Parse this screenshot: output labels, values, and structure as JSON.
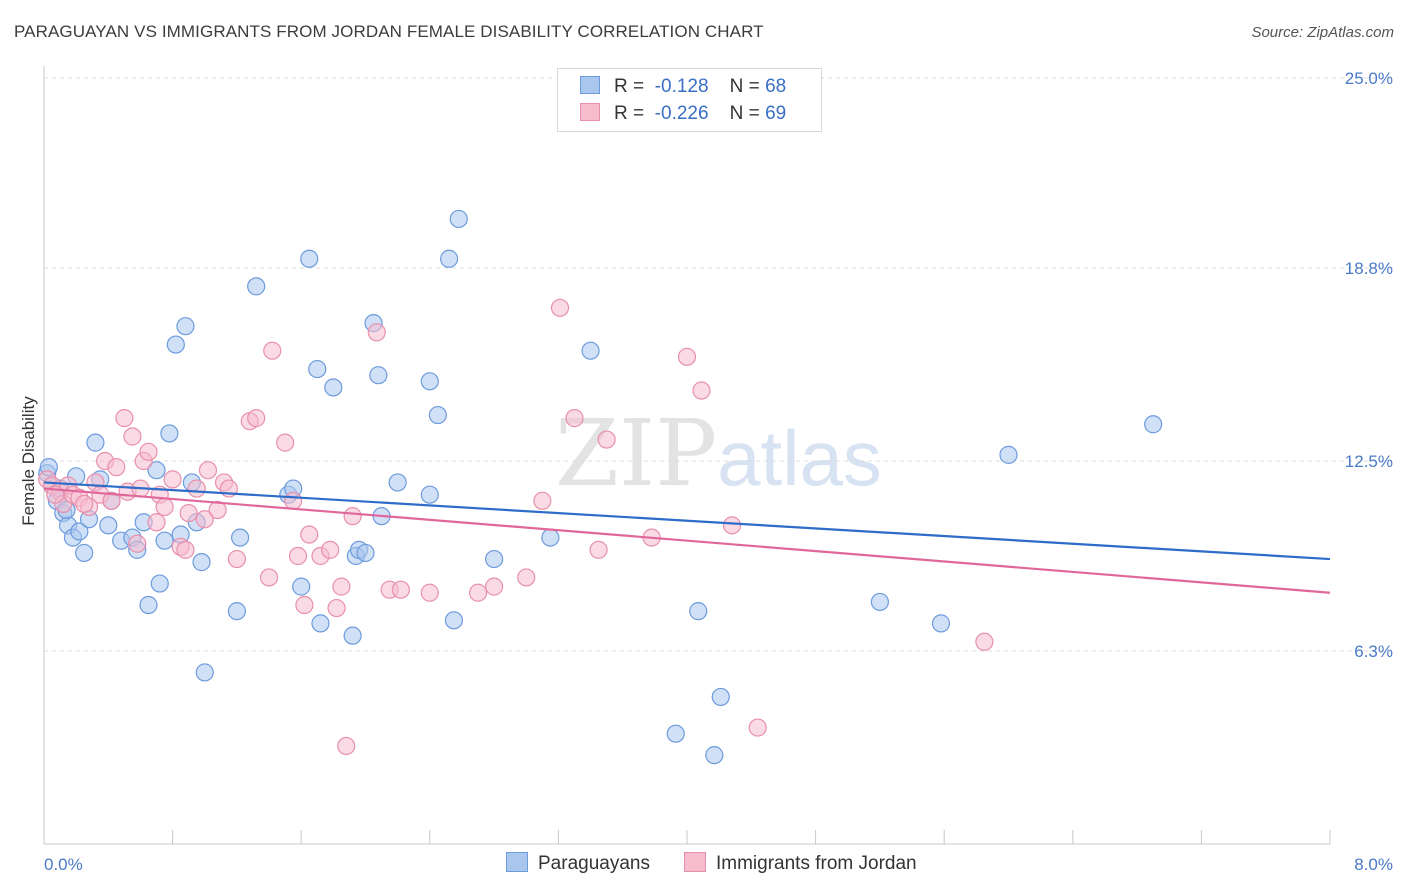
{
  "title": "PARAGUAYAN VS IMMIGRANTS FROM JORDAN FEMALE DISABILITY CORRELATION CHART",
  "source": "Source: ZipAtlas.com",
  "watermark": {
    "zip": "ZIP",
    "atlas": "atlas"
  },
  "legend": {
    "r_label": "R =",
    "n_label": "N =",
    "rows": [
      {
        "r": "-0.128",
        "n": "68"
      },
      {
        "r": "-0.226",
        "n": "69"
      }
    ]
  },
  "bottom_legend": [
    "Paraguayans",
    "Immigrants from Jordan"
  ],
  "colors": {
    "blue_fill": "#a9c6ef",
    "blue_stroke": "#6d9bdc",
    "blue_line": "#2d6cc8",
    "pink_fill": "#f6bccd",
    "pink_stroke": "#e890ab",
    "pink_line": "#e0679a"
  },
  "chart_data": {
    "type": "scatter",
    "title": "PARAGUAYAN VS IMMIGRANTS FROM JORDAN FEMALE DISABILITY CORRELATION CHART",
    "xlabel": "",
    "ylabel": "Female Disability",
    "xlim": [
      0,
      8.0
    ],
    "ylim": [
      0,
      25.0
    ],
    "x_tick_labels": [
      "0.0%",
      "8.0%"
    ],
    "y_ticks": [
      6.3,
      12.5,
      18.8,
      25.0
    ],
    "y_tick_labels": [
      "6.3%",
      "12.5%",
      "18.8%",
      "25.0%"
    ],
    "grid": true,
    "series": [
      {
        "name": "Paraguayans",
        "trend": [
          [
            0,
            11.8
          ],
          [
            8.0,
            9.3
          ]
        ],
        "points": [
          [
            0.02,
            12.1
          ],
          [
            0.05,
            11.7
          ],
          [
            0.08,
            11.2
          ],
          [
            0.12,
            10.8
          ],
          [
            0.15,
            10.4
          ],
          [
            0.18,
            10.0
          ],
          [
            0.22,
            10.2
          ],
          [
            0.25,
            9.5
          ],
          [
            0.28,
            10.6
          ],
          [
            0.32,
            13.1
          ],
          [
            0.35,
            11.9
          ],
          [
            0.4,
            10.4
          ],
          [
            0.42,
            11.2
          ],
          [
            0.48,
            9.9
          ],
          [
            0.55,
            10.0
          ],
          [
            0.58,
            9.6
          ],
          [
            0.62,
            10.5
          ],
          [
            0.65,
            7.8
          ],
          [
            0.7,
            12.2
          ],
          [
            0.72,
            8.5
          ],
          [
            0.75,
            9.9
          ],
          [
            0.78,
            13.4
          ],
          [
            0.82,
            16.3
          ],
          [
            0.85,
            10.1
          ],
          [
            0.88,
            16.9
          ],
          [
            0.92,
            11.8
          ],
          [
            0.95,
            10.5
          ],
          [
            0.98,
            9.2
          ],
          [
            1.0,
            5.6
          ],
          [
            1.2,
            7.6
          ],
          [
            1.22,
            10.0
          ],
          [
            1.32,
            18.2
          ],
          [
            1.52,
            11.4
          ],
          [
            1.55,
            11.6
          ],
          [
            1.6,
            8.4
          ],
          [
            1.65,
            19.1
          ],
          [
            1.7,
            15.5
          ],
          [
            1.72,
            7.2
          ],
          [
            1.8,
            14.9
          ],
          [
            1.92,
            6.8
          ],
          [
            1.94,
            9.4
          ],
          [
            1.96,
            9.6
          ],
          [
            2.0,
            9.5
          ],
          [
            2.05,
            17.0
          ],
          [
            2.08,
            15.3
          ],
          [
            2.1,
            10.7
          ],
          [
            2.2,
            11.8
          ],
          [
            2.4,
            11.4
          ],
          [
            2.4,
            15.1
          ],
          [
            2.45,
            14.0
          ],
          [
            2.52,
            19.1
          ],
          [
            2.58,
            20.4
          ],
          [
            2.55,
            7.3
          ],
          [
            2.8,
            9.3
          ],
          [
            3.15,
            10.0
          ],
          [
            3.4,
            16.1
          ],
          [
            3.93,
            3.6
          ],
          [
            4.07,
            7.6
          ],
          [
            4.17,
            2.9
          ],
          [
            4.21,
            4.8
          ],
          [
            5.2,
            7.9
          ],
          [
            5.58,
            7.2
          ],
          [
            6.0,
            12.7
          ],
          [
            6.9,
            13.7
          ],
          [
            0.03,
            12.3
          ],
          [
            0.1,
            11.6
          ],
          [
            0.14,
            10.9
          ],
          [
            0.2,
            12.0
          ]
        ]
      },
      {
        "name": "Immigrants from Jordan",
        "trend": [
          [
            0,
            11.6
          ],
          [
            8.0,
            8.2
          ]
        ],
        "points": [
          [
            0.02,
            11.9
          ],
          [
            0.05,
            11.7
          ],
          [
            0.1,
            11.5
          ],
          [
            0.12,
            11.1
          ],
          [
            0.15,
            11.7
          ],
          [
            0.18,
            11.4
          ],
          [
            0.22,
            11.3
          ],
          [
            0.28,
            11.0
          ],
          [
            0.32,
            11.8
          ],
          [
            0.35,
            11.4
          ],
          [
            0.38,
            12.5
          ],
          [
            0.42,
            11.2
          ],
          [
            0.45,
            12.3
          ],
          [
            0.5,
            13.9
          ],
          [
            0.52,
            11.5
          ],
          [
            0.55,
            13.3
          ],
          [
            0.58,
            9.8
          ],
          [
            0.6,
            11.6
          ],
          [
            0.62,
            12.5
          ],
          [
            0.65,
            12.8
          ],
          [
            0.7,
            10.5
          ],
          [
            0.72,
            11.4
          ],
          [
            0.75,
            11.0
          ],
          [
            0.8,
            11.9
          ],
          [
            0.85,
            9.7
          ],
          [
            0.88,
            9.6
          ],
          [
            0.9,
            10.8
          ],
          [
            0.95,
            11.6
          ],
          [
            1.0,
            10.6
          ],
          [
            1.02,
            12.2
          ],
          [
            1.08,
            10.9
          ],
          [
            1.12,
            11.8
          ],
          [
            1.15,
            11.6
          ],
          [
            1.2,
            9.3
          ],
          [
            1.28,
            13.8
          ],
          [
            1.32,
            13.9
          ],
          [
            1.4,
            8.7
          ],
          [
            1.42,
            16.1
          ],
          [
            1.5,
            13.1
          ],
          [
            1.55,
            11.2
          ],
          [
            1.58,
            9.4
          ],
          [
            1.62,
            7.8
          ],
          [
            1.65,
            10.1
          ],
          [
            1.72,
            9.4
          ],
          [
            1.78,
            9.6
          ],
          [
            1.82,
            7.7
          ],
          [
            1.85,
            8.4
          ],
          [
            1.88,
            3.2
          ],
          [
            1.92,
            10.7
          ],
          [
            2.07,
            16.7
          ],
          [
            2.15,
            8.3
          ],
          [
            2.22,
            8.3
          ],
          [
            2.4,
            8.2
          ],
          [
            2.7,
            8.2
          ],
          [
            2.8,
            8.4
          ],
          [
            3.0,
            8.7
          ],
          [
            3.1,
            11.2
          ],
          [
            3.21,
            17.5
          ],
          [
            3.3,
            13.9
          ],
          [
            3.45,
            9.6
          ],
          [
            3.5,
            13.2
          ],
          [
            3.78,
            10.0
          ],
          [
            4.0,
            15.9
          ],
          [
            4.09,
            14.8
          ],
          [
            4.28,
            10.4
          ],
          [
            4.44,
            3.8
          ],
          [
            5.85,
            6.6
          ],
          [
            0.07,
            11.4
          ],
          [
            0.25,
            11.1
          ]
        ]
      }
    ]
  }
}
